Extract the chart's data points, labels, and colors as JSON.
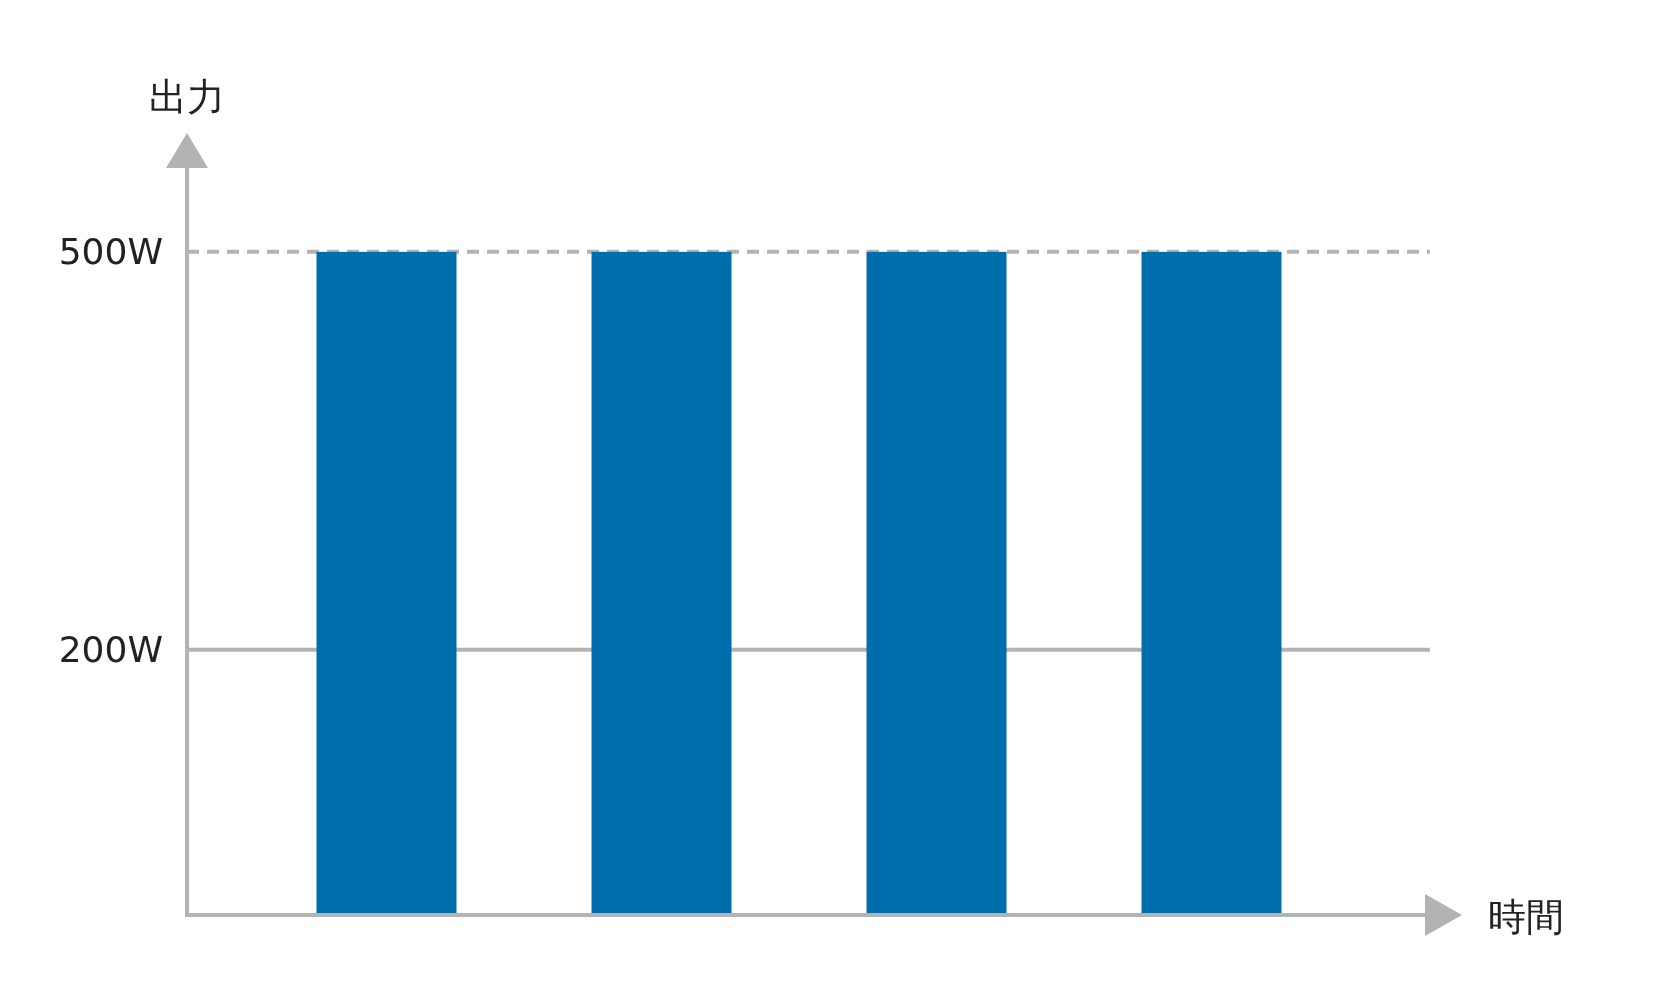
{
  "chart_data": {
    "type": "bar",
    "xlabel": "時間",
    "ylabel": "出力",
    "categories": [
      null,
      null,
      null,
      null
    ],
    "values": [
      500,
      500,
      500,
      500
    ],
    "color": "#006ead",
    "ylim": [
      0,
      567
    ],
    "yticks": [
      {
        "value": 200,
        "label": "200W"
      },
      {
        "value": 500,
        "label": "500W"
      }
    ],
    "ref_lines": [
      {
        "axis": "y",
        "value": 500,
        "line_style": "dashed",
        "color": "#b3b3b3"
      },
      {
        "axis": "y",
        "value": 200,
        "line_style": "solid",
        "color": "#b3b3b3"
      }
    ]
  }
}
